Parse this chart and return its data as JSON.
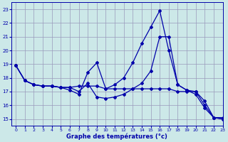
{
  "title": "Graphe des températures (°c)",
  "background_color": "#cce8e8",
  "grid_color": "#9999bb",
  "line_color": "#0000aa",
  "xlim": [
    -0.5,
    23
  ],
  "ylim": [
    14.5,
    23.5
  ],
  "yticks": [
    15,
    16,
    17,
    18,
    19,
    20,
    21,
    22,
    23
  ],
  "xticks": [
    0,
    1,
    2,
    3,
    4,
    5,
    6,
    7,
    8,
    9,
    10,
    11,
    12,
    13,
    14,
    15,
    16,
    17,
    18,
    19,
    20,
    21,
    22,
    23
  ],
  "series1_x": [
    0,
    1,
    2,
    3,
    4,
    5,
    6,
    7,
    8,
    9,
    10,
    11,
    12,
    13,
    14,
    15,
    16,
    17,
    18,
    19,
    20,
    21,
    22,
    23
  ],
  "series1_y": [
    18.9,
    17.8,
    17.5,
    17.4,
    17.4,
    17.3,
    17.1,
    16.8,
    18.4,
    19.1,
    17.2,
    17.5,
    18.0,
    19.1,
    20.5,
    21.7,
    22.9,
    20.0,
    17.5,
    17.1,
    17.0,
    16.0,
    15.1,
    15.1
  ],
  "series2_x": [
    0,
    1,
    2,
    3,
    4,
    5,
    6,
    7,
    8,
    9,
    10,
    11,
    12,
    13,
    14,
    15,
    16,
    17,
    18,
    19,
    20,
    21,
    22,
    23
  ],
  "series2_y": [
    18.9,
    17.8,
    17.5,
    17.4,
    17.4,
    17.3,
    17.3,
    17.4,
    17.4,
    17.4,
    17.2,
    17.2,
    17.2,
    17.2,
    17.2,
    17.2,
    17.2,
    17.2,
    17.0,
    17.0,
    17.0,
    16.3,
    15.1,
    15.0
  ],
  "series3_x": [
    0,
    1,
    2,
    3,
    4,
    5,
    6,
    7,
    8,
    9,
    10,
    11,
    12,
    13,
    14,
    15,
    16,
    17,
    18,
    19,
    20,
    21,
    22,
    23
  ],
  "series3_y": [
    18.9,
    17.8,
    17.5,
    17.4,
    17.4,
    17.3,
    17.3,
    17.0,
    17.6,
    16.6,
    16.5,
    16.6,
    16.8,
    17.2,
    17.6,
    18.5,
    21.0,
    21.0,
    17.5,
    17.1,
    16.8,
    15.8,
    15.1,
    15.0
  ]
}
